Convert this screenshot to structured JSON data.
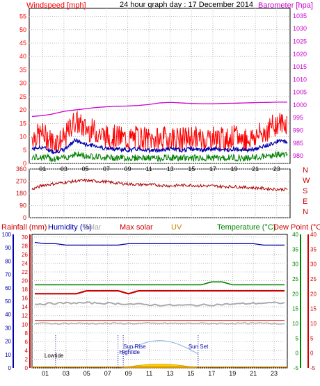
{
  "header": {
    "left_title": "Windspeed [mph]",
    "center_title": "24 hour graph day : 17 December 2014",
    "right_title": "Barometer [hpa]"
  },
  "colors": {
    "windspeed": "#ff0000",
    "gust": "#ff0000",
    "wind_avg": "#0000aa",
    "green": "#008000",
    "barometer": "#cc00cc",
    "direction": "#aa0000",
    "rain": "#cc0000",
    "humidity": "#0000aa",
    "solar": "#aaaaaa",
    "max_solar": "#cc0000",
    "uv": "#cc8800",
    "temperature": "#008000",
    "dewpoint": "#cc0000",
    "sun_arc": "#88aadd",
    "sun_fill": "#ffd000"
  },
  "chart_data": [
    {
      "type": "line",
      "panel": "wind_baro",
      "x_tick_labels": [
        "01",
        "03",
        "05",
        "07",
        "09",
        "11",
        "13",
        "15",
        "17",
        "19",
        "21",
        "23"
      ],
      "left_axis": {
        "label": "Windspeed [mph]",
        "ticks": [
          0,
          5,
          10,
          15,
          20,
          25,
          30,
          35,
          40,
          45,
          50,
          55
        ],
        "ylim": [
          0,
          58
        ]
      },
      "right_axis": {
        "label": "Barometer [hpa]",
        "ticks": [
          980,
          985,
          990,
          995,
          1000,
          1005,
          1010,
          1015,
          1020,
          1025,
          1030,
          1035
        ],
        "ylim": [
          977,
          1038
        ]
      },
      "series": [
        {
          "name": "Windspeed [mph]",
          "axis": "left",
          "values_hourly": [
            10,
            11,
            8,
            9,
            16,
            13,
            12,
            10,
            10,
            9,
            10,
            9,
            9,
            10,
            9,
            10,
            9,
            10,
            9,
            10,
            9,
            10,
            12,
            15
          ]
        },
        {
          "name": "Barometer [hpa]",
          "axis": "right",
          "values_hourly": [
            995.5,
            995.8,
            996.5,
            997.5,
            998.0,
            998.5,
            999.0,
            999.3,
            999.5,
            999.6,
            999.8,
            1000.2,
            1000.8,
            1001.0,
            1000.8,
            1000.6,
            1000.5,
            1000.5,
            1000.6,
            1000.7,
            1000.8,
            1000.9,
            1001.0,
            1001.1
          ]
        }
      ]
    },
    {
      "type": "line",
      "panel": "direction",
      "x_tick_labels": [
        "01",
        "03",
        "05",
        "07",
        "09",
        "11",
        "13",
        "15",
        "17",
        "19",
        "21",
        "23"
      ],
      "left_axis": {
        "ticks": [
          0,
          90,
          180,
          270,
          360
        ],
        "ylim": [
          0,
          360
        ]
      },
      "right_axis_labels": [
        "N",
        "W",
        "S",
        "E",
        "N"
      ],
      "series": [
        {
          "values_hourly": [
            210,
            240,
            250,
            260,
            270,
            275,
            270,
            265,
            255,
            250,
            245,
            245,
            240,
            235,
            240,
            240,
            235,
            235,
            230,
            230,
            225,
            220,
            215,
            210
          ]
        }
      ]
    },
    {
      "type": "line",
      "panel": "rain_temp",
      "legend": [
        "Rainfall (mm)",
        "Humidity (%)",
        "Solar",
        "Max solar",
        "UV",
        "Temperature (°C)",
        "Dew Point (°C)"
      ],
      "x_tick_labels": [
        "01",
        "03",
        "05",
        "07",
        "09",
        "11",
        "13",
        "15",
        "17",
        "19",
        "21",
        "23"
      ],
      "axis_rain": {
        "ticks": [
          0,
          2,
          4,
          6,
          8,
          10,
          12,
          14,
          16,
          18,
          20,
          22,
          24,
          26,
          28,
          30
        ],
        "ylim": [
          0,
          30.6
        ]
      },
      "axis_humidity": {
        "ticks": [
          0,
          10,
          20,
          30,
          40,
          50,
          60,
          70,
          80,
          90,
          100
        ],
        "ylim": [
          0,
          100
        ]
      },
      "axis_temp": {
        "ticks": [
          -5,
          0,
          5,
          10,
          15,
          20,
          25,
          30,
          35,
          40
        ],
        "ylim": [
          -5,
          40
        ]
      },
      "series": [
        {
          "name": "Humidity (%)",
          "axis": "humidity",
          "values_hourly": [
            94,
            93,
            93,
            92,
            92,
            92,
            92,
            92,
            92,
            93,
            93,
            93,
            93,
            93,
            93,
            93,
            93,
            93,
            93,
            93,
            93,
            93,
            92,
            92
          ]
        },
        {
          "name": "Temperature (°C)",
          "axis": "temp",
          "values_hourly": [
            23,
            23,
            23,
            23,
            23,
            23,
            23,
            23,
            23,
            23,
            23,
            23,
            23,
            23,
            23,
            23,
            23,
            24,
            24,
            23,
            23,
            23,
            23,
            23
          ]
        },
        {
          "name": "Dew Point (°C)",
          "axis": "temp",
          "values_hourly": [
            20,
            20,
            20,
            20,
            20,
            21,
            21,
            21,
            21,
            20,
            21,
            21,
            21,
            21,
            21,
            21,
            21,
            21,
            21,
            21,
            21,
            21,
            21,
            21
          ]
        },
        {
          "name": "Solar",
          "axis": "temp",
          "values_hourly": [
            10,
            10,
            10,
            10,
            10,
            10,
            10,
            10,
            10,
            10,
            10,
            10,
            10,
            10,
            10,
            10,
            10,
            10,
            10,
            10,
            10,
            10,
            10,
            10
          ]
        },
        {
          "name": "Max solar",
          "axis": "temp",
          "values_hourly": [
            11,
            11,
            11,
            11,
            11,
            11,
            11,
            11,
            11,
            11,
            11,
            11,
            11,
            11,
            11,
            11,
            11,
            11,
            11,
            11,
            11,
            11,
            11,
            11
          ]
        }
      ],
      "annotations": [
        {
          "label": "Lowtide",
          "hour": 2.0
        },
        {
          "label": "Sun Rise",
          "hour": 8.5
        },
        {
          "label": "Hightide",
          "hour": 8.0
        },
        {
          "label": "Sun Set",
          "hour": 15.7
        }
      ]
    }
  ]
}
